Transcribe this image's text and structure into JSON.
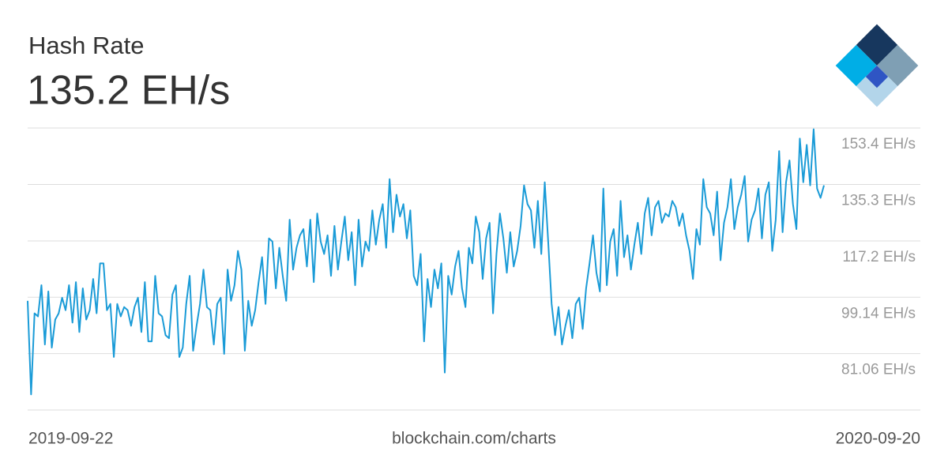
{
  "chart_data": {
    "type": "line",
    "title": "Hash Rate",
    "subtitle": "135.2 EH/s",
    "source": "blockchain.com/charts",
    "color": "#1a9bd7",
    "grid": true,
    "ylim": [
      63,
      153.4
    ],
    "yticks": [
      {
        "value": 153.4,
        "label": "153.4 EH/s"
      },
      {
        "value": 135.3,
        "label": "135.3 EH/s"
      },
      {
        "value": 117.2,
        "label": "117.2 EH/s"
      },
      {
        "value": 99.14,
        "label": "99.14 EH/s"
      },
      {
        "value": 81.06,
        "label": "81.06 EH/s"
      }
    ],
    "categories": [
      "2019-09-22",
      null,
      null,
      null,
      null,
      null,
      null,
      null,
      null,
      null,
      null,
      null,
      null,
      null,
      null,
      null,
      null,
      null,
      null,
      null,
      null,
      null,
      null,
      null,
      null,
      null,
      null,
      null,
      null,
      null,
      null,
      null,
      null,
      null,
      null,
      null,
      null,
      null,
      null,
      null,
      null,
      null,
      null,
      null,
      null,
      null,
      null,
      null,
      null,
      null,
      null,
      null,
      null,
      null,
      null,
      null,
      null,
      null,
      null,
      null,
      null,
      null,
      null,
      null,
      null,
      null,
      null,
      null,
      null,
      null,
      null,
      null,
      null,
      null,
      null,
      null,
      null,
      null,
      null,
      null,
      null,
      null,
      null,
      null,
      null,
      null,
      null,
      null,
      null,
      null,
      null,
      null,
      null,
      null,
      null,
      null,
      null,
      null,
      null,
      null,
      null,
      null,
      null,
      null,
      null,
      null,
      null,
      null,
      null,
      null,
      null,
      null,
      null,
      null,
      null,
      null,
      null,
      null,
      null,
      null,
      null,
      null,
      null,
      null,
      null,
      null,
      null,
      null,
      null,
      null,
      null,
      null,
      null,
      null,
      null,
      null,
      null,
      null,
      null,
      null,
      null,
      null,
      null,
      null,
      null,
      null,
      null,
      null,
      null,
      null,
      null,
      null,
      null,
      null,
      null,
      null,
      null,
      null,
      null,
      null,
      null,
      null,
      null,
      null,
      null,
      null,
      null,
      null,
      null,
      null,
      null,
      null,
      null,
      null,
      null,
      null,
      null,
      null,
      null,
      null,
      null,
      null,
      null,
      null,
      null,
      null,
      null,
      null,
      null,
      null,
      null,
      null,
      null,
      null,
      null,
      null,
      null,
      null,
      null,
      null,
      null,
      null,
      null,
      null,
      null,
      null,
      null,
      null,
      null,
      null,
      null,
      null,
      null,
      null,
      null,
      null,
      null,
      null,
      null,
      null,
      null,
      null,
      null,
      null,
      null,
      null,
      null,
      null,
      null,
      null,
      null,
      "2020-09-20"
    ],
    "values": [
      98,
      68,
      94,
      93,
      103,
      84,
      101,
      83,
      92,
      94,
      99,
      95,
      103,
      91,
      104,
      88,
      102,
      92,
      95,
      105,
      94,
      110,
      110,
      95,
      97,
      80,
      97,
      93,
      96,
      95,
      90,
      96,
      99,
      88,
      104,
      85,
      85,
      106,
      94,
      93,
      87,
      86,
      100,
      103,
      80,
      83,
      97,
      106,
      82,
      90,
      97,
      108,
      96,
      95,
      84,
      97,
      99,
      81,
      108,
      98,
      103,
      114,
      108,
      82,
      98,
      90,
      95,
      104,
      112,
      97,
      118,
      117,
      102,
      115,
      106,
      98,
      124,
      108,
      115,
      119,
      121,
      109,
      124,
      104,
      126,
      117,
      113,
      119,
      106,
      122,
      108,
      117,
      125,
      111,
      120,
      103,
      124,
      109,
      117,
      114,
      127,
      116,
      124,
      129,
      115,
      137,
      120,
      132,
      125,
      129,
      118,
      127,
      106,
      103,
      113,
      85,
      105,
      96,
      108,
      102,
      110,
      75,
      106,
      100,
      109,
      114,
      102,
      96,
      115,
      110,
      125,
      120,
      105,
      118,
      123,
      94,
      113,
      126,
      118,
      107,
      120,
      109,
      114,
      122,
      135,
      129,
      127,
      115,
      130,
      113,
      136,
      117,
      97,
      87,
      96,
      84,
      90,
      95,
      86,
      97,
      99,
      89,
      102,
      110,
      119,
      107,
      101,
      134,
      103,
      117,
      121,
      106,
      130,
      112,
      119,
      108,
      116,
      123,
      113,
      126,
      131,
      119,
      128,
      130,
      123,
      126,
      125,
      130,
      128,
      122,
      126,
      119,
      114,
      105,
      121,
      116,
      137,
      128,
      126,
      119,
      133,
      111,
      123,
      128,
      137,
      121,
      128,
      132,
      138,
      117,
      124,
      127,
      134,
      118,
      132,
      136,
      114,
      124,
      146,
      120,
      136,
      143,
      129,
      121,
      150,
      136,
      148,
      135,
      153,
      134,
      131,
      135
    ]
  }
}
